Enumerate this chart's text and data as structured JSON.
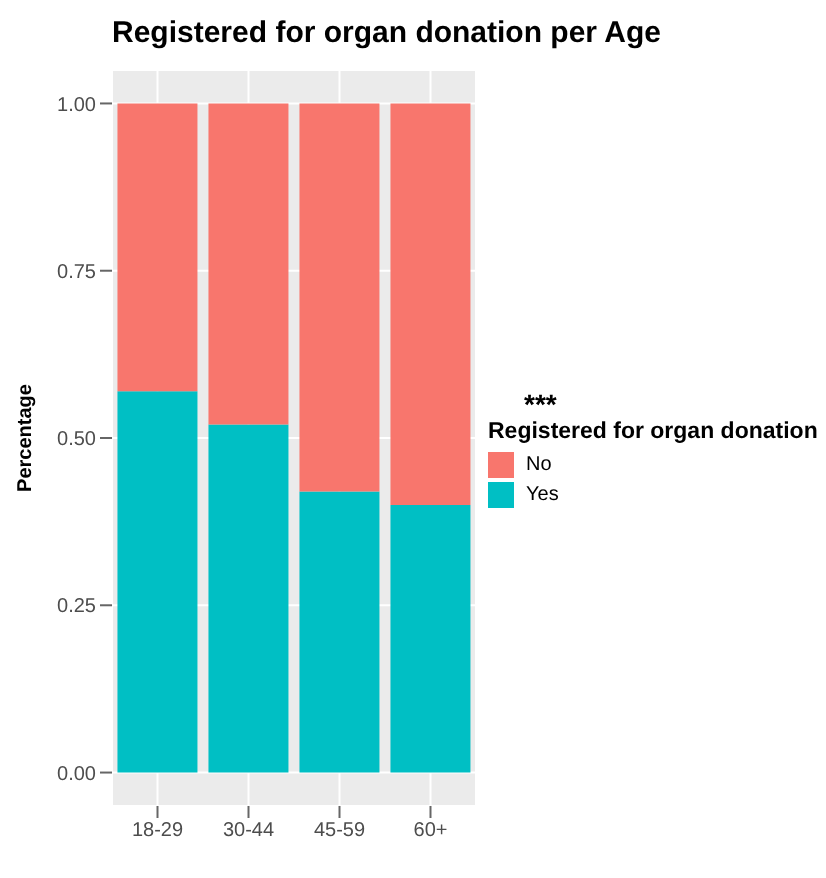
{
  "chart_data": {
    "type": "bar",
    "title": "Registered for organ donation per Age",
    "ylabel": "Percentage",
    "legend_title": "Registered for organ donation",
    "categories": [
      "18-29",
      "30-44",
      "45-59",
      "60+"
    ],
    "series": [
      {
        "name": "Yes",
        "color": "#00bfc4",
        "values": [
          0.57,
          0.52,
          0.42,
          0.4
        ]
      },
      {
        "name": "No",
        "color": "#f8766d",
        "values": [
          0.43,
          0.48,
          0.58,
          0.6
        ]
      }
    ],
    "stacked": true,
    "ylim": [
      -0.05,
      1.05
    ],
    "yticks": [
      {
        "value": 0,
        "label": "0.00"
      },
      {
        "value": 0.25,
        "label": "0.25"
      },
      {
        "value": 0.5,
        "label": "0.50"
      },
      {
        "value": 0.75,
        "label": "0.75"
      },
      {
        "value": 1,
        "label": "1.00"
      }
    ],
    "grid": true,
    "legend": "right",
    "annotations": [
      "***"
    ]
  }
}
